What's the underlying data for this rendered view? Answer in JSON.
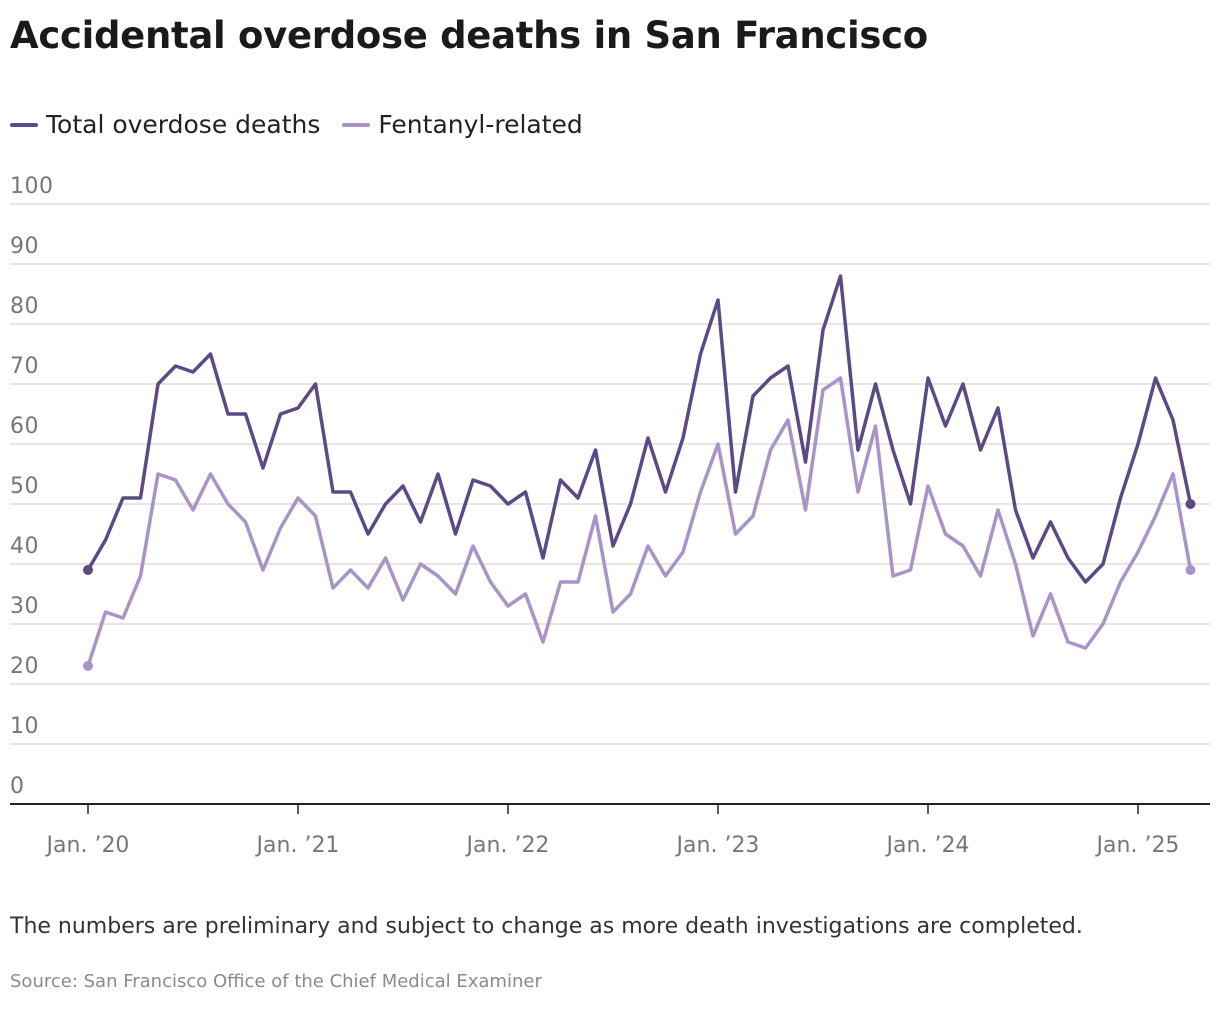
{
  "title": "Accidental overdose deaths in San Francisco",
  "note": "The numbers are preliminary and subject to change as more death investigations are completed.",
  "source": "Source: San Francisco Office of the Chief Medical Examiner",
  "colors": {
    "total": "#5c4a84",
    "fentanyl": "#a894c7",
    "grid": "#dddddd",
    "axis": "#222222",
    "tick_text": "#777777"
  },
  "chart_data": {
    "type": "line",
    "x_unit": "month",
    "x_start": "2020-01",
    "x_end": "2025-04",
    "ylim": [
      0,
      100
    ],
    "y_ticks": [
      0,
      10,
      20,
      30,
      40,
      50,
      60,
      70,
      80,
      90,
      100
    ],
    "x_ticks": [
      {
        "label": "Jan. ’20",
        "date": "2020-01"
      },
      {
        "label": "Jan. ’21",
        "date": "2021-01"
      },
      {
        "label": "Jan. ’22",
        "date": "2022-01"
      },
      {
        "label": "Jan. ’23",
        "date": "2023-01"
      },
      {
        "label": "Jan. ’24",
        "date": "2024-01"
      },
      {
        "label": "Jan. ’25",
        "date": "2025-01"
      }
    ],
    "grid": true,
    "legend": "top-left",
    "series": [
      {
        "name": "Total overdose deaths",
        "color_key": "total",
        "values": [
          39,
          44,
          51,
          51,
          70,
          73,
          72,
          75,
          65,
          65,
          56,
          65,
          66,
          70,
          52,
          52,
          45,
          50,
          53,
          47,
          55,
          45,
          54,
          53,
          50,
          52,
          41,
          54,
          51,
          59,
          43,
          50,
          61,
          52,
          61,
          75,
          84,
          52,
          68,
          71,
          73,
          57,
          79,
          88,
          59,
          70,
          59,
          50,
          71,
          63,
          70,
          59,
          66,
          49,
          41,
          47,
          41,
          37,
          40,
          51,
          60,
          71,
          64,
          50
        ]
      },
      {
        "name": "Fentanyl-related",
        "color_key": "fentanyl",
        "values": [
          23,
          32,
          31,
          38,
          55,
          54,
          49,
          55,
          50,
          47,
          39,
          46,
          51,
          48,
          36,
          39,
          36,
          41,
          34,
          40,
          38,
          35,
          43,
          37,
          33,
          35,
          27,
          37,
          37,
          48,
          32,
          35,
          43,
          38,
          42,
          52,
          60,
          45,
          48,
          59,
          64,
          49,
          69,
          71,
          52,
          63,
          38,
          39,
          53,
          45,
          43,
          38,
          49,
          40,
          28,
          35,
          27,
          26,
          30,
          37,
          42,
          48,
          55,
          39
        ]
      }
    ]
  }
}
